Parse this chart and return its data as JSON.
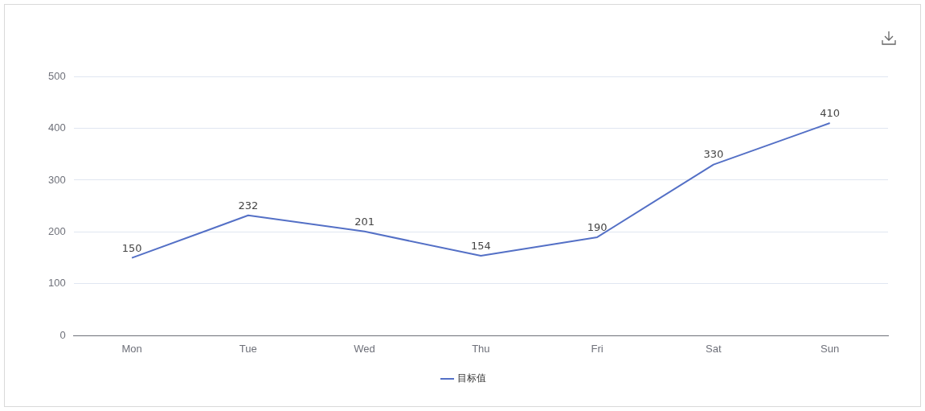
{
  "chart_data": {
    "type": "line",
    "categories": [
      "Mon",
      "Tue",
      "Wed",
      "Thu",
      "Fri",
      "Sat",
      "Sun"
    ],
    "series": [
      {
        "name": "目标值",
        "color": "#5470c6",
        "values": [
          150,
          232,
          201,
          154,
          190,
          330,
          410
        ]
      }
    ],
    "ylim": [
      0,
      500
    ],
    "yticks": [
      0,
      100,
      200,
      300,
      400,
      500
    ],
    "grid": "y",
    "legend": "bottom",
    "marker": "none",
    "line_style": "solid",
    "data_labels": true
  }
}
